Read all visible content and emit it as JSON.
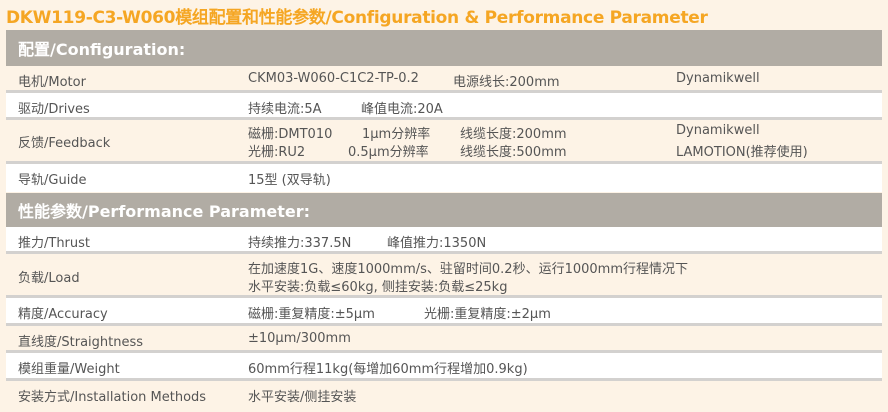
{
  "title": "DKW119-C3-W060模组配置和性能参数/Configuration & Performance Parameter",
  "config": {
    "header": "配置/Configuration:",
    "motor": {
      "label": "电机/Motor",
      "model": "CKM03-W060-C1C2-TP-0.2",
      "cable": "电源线长:200mm",
      "brand": "Dynamikwell"
    },
    "drives": {
      "label": "驱动/Drives",
      "cont": "持续电流:5A",
      "peak": "峰值电流:20A"
    },
    "feedback": {
      "label": "反馈/Feedback",
      "l1a": "磁栅:DMT010",
      "l1b": "1μm分辨率",
      "l1c": "线缆长度:200mm",
      "l1d": "Dynamikwell",
      "l2a": "光栅:RU2",
      "l2b": "0.5μm分辨率",
      "l2c": "线缆长度:500mm",
      "l2d": "LAMOTION(推荐使用)"
    },
    "guide": {
      "label": "导轨/Guide",
      "value": "15型 (双导轨)"
    }
  },
  "perf": {
    "header": "性能参数/Performance Parameter:",
    "thrust": {
      "label": "推力/Thrust",
      "cont": "持续推力:337.5N",
      "peak": "峰值推力:1350N"
    },
    "load": {
      "label": "负载/Load",
      "l1": "在加速度1G、速度1000mm/s、驻留时间0.2秒、运行1000mm行程情况下",
      "l2": "水平安装:负载≤60kg, 侧挂安装:负载≤25kg"
    },
    "accuracy": {
      "label": "精度/Accuracy",
      "a": "磁栅:重复精度:±5μm",
      "b": "光栅:重复精度:±2μm"
    },
    "straightness": {
      "label": "直线度/Straightness",
      "value": "±10μm/300mm"
    },
    "weight": {
      "label": "模组重量/Weight",
      "value": "60mm行程11kg(每增加60mm行程增加0.9kg)"
    },
    "install": {
      "label": "安装方式/Installation Methods",
      "value": "水平安装/侧挂安装"
    }
  }
}
